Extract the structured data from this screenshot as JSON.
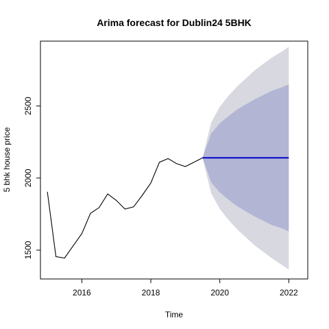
{
  "chart_data": {
    "type": "line",
    "title": "Arima forecast for Dublin24 5BHK",
    "xlabel": "Time",
    "ylabel": "5 bhk house price",
    "xlim": [
      2014.8,
      2022.55
    ],
    "ylim": [
      1300,
      2950
    ],
    "x_ticks": [
      "2016",
      "2018",
      "2020",
      "2022"
    ],
    "y_ticks": [
      "1500",
      "2000",
      "2500"
    ],
    "grid": false,
    "series": [
      {
        "role": "observed",
        "color": "#000000",
        "points": [
          [
            2015.0,
            1905
          ],
          [
            2015.25,
            1455
          ],
          [
            2015.5,
            1445
          ],
          [
            2015.75,
            1530
          ],
          [
            2016.0,
            1615
          ],
          [
            2016.25,
            1755
          ],
          [
            2016.5,
            1795
          ],
          [
            2016.75,
            1890
          ],
          [
            2017.0,
            1845
          ],
          [
            2017.25,
            1785
          ],
          [
            2017.5,
            1800
          ],
          [
            2017.75,
            1880
          ],
          [
            2018.0,
            1965
          ],
          [
            2018.25,
            2110
          ],
          [
            2018.5,
            2135
          ],
          [
            2018.75,
            2100
          ],
          [
            2019.0,
            2080
          ],
          [
            2019.25,
            2110
          ],
          [
            2019.5,
            2140
          ]
        ]
      },
      {
        "role": "forecast",
        "color": "#0000CC",
        "points": [
          [
            2019.5,
            2140
          ],
          [
            2022.0,
            2140
          ]
        ]
      }
    ],
    "intervals": [
      {
        "level": "outer",
        "color": "#D8D8E0",
        "x": [
          2019.5,
          2019.75,
          2020.0,
          2020.25,
          2020.5,
          2020.75,
          2021.0,
          2021.25,
          2021.5,
          2021.75,
          2022.0
        ],
        "upper": [
          2140,
          2385,
          2495,
          2570,
          2635,
          2690,
          2745,
          2790,
          2835,
          2870,
          2910
        ],
        "lower": [
          2140,
          1895,
          1785,
          1710,
          1645,
          1590,
          1535,
          1490,
          1445,
          1405,
          1365
        ]
      },
      {
        "level": "inner",
        "color": "#B2B5D4",
        "x": [
          2019.5,
          2019.75,
          2020.0,
          2020.25,
          2020.5,
          2020.75,
          2021.0,
          2021.25,
          2021.5,
          2021.75,
          2022.0
        ],
        "upper": [
          2140,
          2310,
          2380,
          2430,
          2475,
          2510,
          2545,
          2575,
          2605,
          2625,
          2650
        ],
        "lower": [
          2140,
          1970,
          1900,
          1850,
          1805,
          1770,
          1735,
          1705,
          1675,
          1655,
          1630
        ]
      }
    ]
  }
}
